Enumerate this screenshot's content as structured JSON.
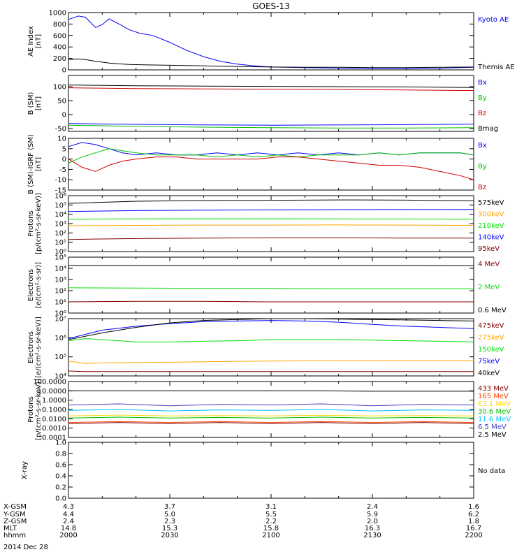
{
  "title": "GOES-13",
  "footer": {
    "rows": [
      {
        "label": "X-GSM",
        "values": [
          "4.3",
          "3.7",
          "3.1",
          "2.4",
          "1.6"
        ]
      },
      {
        "label": "Y-GSM",
        "values": [
          "4.4",
          "5.0",
          "5.5",
          "5.9",
          "6.2"
        ]
      },
      {
        "label": "Z-GSM",
        "values": [
          "2.4",
          "2.3",
          "2.2",
          "2.0",
          "1.8"
        ]
      },
      {
        "label": "MLT",
        "values": [
          "14.8",
          "15.3",
          "15.8",
          "16.3",
          "16.7"
        ]
      },
      {
        "label": "hhmm",
        "values": [
          "2000",
          "2030",
          "2100",
          "2130",
          "2200"
        ]
      }
    ],
    "date": "2014 Dec 28"
  },
  "chart_data": [
    {
      "id": "ae",
      "type": "line",
      "ylabel_lines": [
        "AE Index",
        "[nT]"
      ],
      "ylim": [
        0,
        1000
      ],
      "yscale": "linear",
      "yticks": [
        {
          "v": 0,
          "t": "0"
        },
        {
          "v": 200,
          "t": "200"
        },
        {
          "v": 400,
          "t": "400"
        },
        {
          "v": 600,
          "t": "600"
        },
        {
          "v": 800,
          "t": "800"
        },
        {
          "v": 1000,
          "t": "1000"
        }
      ],
      "x": [
        0,
        3,
        5,
        8,
        10,
        12,
        15,
        18,
        21,
        25,
        30,
        35,
        40,
        45,
        50,
        55,
        60,
        70,
        80,
        90,
        100,
        110,
        120
      ],
      "series": [
        {
          "name": "Kyoto AE",
          "color": "#0000ff",
          "values": [
            880,
            940,
            920,
            740,
            790,
            890,
            800,
            700,
            640,
            600,
            480,
            340,
            230,
            150,
            100,
            70,
            50,
            40,
            30,
            25,
            20,
            30,
            45
          ]
        },
        {
          "name": "Themis AE",
          "color": "#000000",
          "values": [
            180,
            190,
            180,
            150,
            135,
            120,
            105,
            95,
            90,
            85,
            80,
            75,
            70,
            65,
            60,
            55,
            50,
            45,
            45,
            40,
            40,
            45,
            50
          ]
        }
      ]
    },
    {
      "id": "bsm",
      "type": "line",
      "ylabel_lines": [
        "B (SM)",
        "[nT]"
      ],
      "ylim": [
        -60,
        140
      ],
      "yscale": "linear",
      "yticks": [
        {
          "v": -50,
          "t": "-50"
        },
        {
          "v": 0,
          "t": "0"
        },
        {
          "v": 50,
          "t": "50"
        },
        {
          "v": 100,
          "t": "100"
        }
      ],
      "x": [
        0,
        20,
        40,
        60,
        80,
        100,
        120
      ],
      "series": [
        {
          "name": "Bx",
          "color": "#0000ff",
          "values": [
            -32,
            -35,
            -37,
            -38,
            -37,
            -36,
            -34
          ]
        },
        {
          "name": "By",
          "color": "#00c000",
          "values": [
            -38,
            -42,
            -45,
            -47,
            -48,
            -48,
            -47
          ]
        },
        {
          "name": "Bz",
          "color": "#cc0000",
          "values": [
            96,
            93,
            92,
            91,
            90,
            88,
            86
          ]
        },
        {
          "name": "Bmag",
          "color": "#000000",
          "values": [
            106,
            103,
            102,
            101,
            100,
            99,
            97
          ]
        }
      ]
    },
    {
      "id": "bigrf",
      "type": "line",
      "ylabel_lines": [
        "B (SM)-IGRF (SM)",
        "[nT]"
      ],
      "ylim": [
        -15,
        10
      ],
      "yscale": "linear",
      "yticks": [
        {
          "v": -15,
          "t": "-15"
        },
        {
          "v": -10,
          "t": "-10"
        },
        {
          "v": -5,
          "t": "-5"
        },
        {
          "v": 0,
          "t": "0"
        },
        {
          "v": 5,
          "t": "5"
        },
        {
          "v": 10,
          "t": "10"
        }
      ],
      "x": [
        0,
        4,
        8,
        12,
        16,
        20,
        26,
        32,
        38,
        44,
        50,
        56,
        62,
        68,
        74,
        80,
        86,
        92,
        98,
        104,
        110,
        116,
        120
      ],
      "series": [
        {
          "name": "Bx",
          "color": "#0000ff",
          "values": [
            6,
            8,
            7,
            5,
            3,
            2,
            3,
            2,
            2,
            3,
            2,
            3,
            2,
            3,
            2,
            3,
            2,
            3,
            2,
            3,
            3,
            3,
            2
          ]
        },
        {
          "name": "By",
          "color": "#00c000",
          "values": [
            -2,
            1,
            3,
            5,
            4,
            3,
            2,
            2,
            2,
            1,
            2,
            1,
            2,
            1,
            2,
            2,
            2,
            3,
            2,
            3,
            3,
            3,
            2
          ]
        },
        {
          "name": "Bz",
          "color": "#cc0000",
          "values": [
            0,
            -4,
            -6,
            -3,
            -1,
            0,
            1,
            1,
            0,
            0,
            0,
            0,
            1,
            1,
            0,
            -1,
            -2,
            -3,
            -3,
            -4,
            -6,
            -8,
            -10
          ]
        }
      ]
    },
    {
      "id": "protons_low",
      "type": "line",
      "ylabel_lines": [
        "Protons",
        "[p/(cm²-s-sr-keV)]"
      ],
      "ylim": [
        1,
        1000000
      ],
      "yscale": "log",
      "yticks": [
        {
          "v": 1,
          "t": "10⁰"
        },
        {
          "v": 10,
          "t": "10¹"
        },
        {
          "v": 100,
          "t": "10²"
        },
        {
          "v": 1000,
          "t": "10³"
        },
        {
          "v": 10000,
          "t": "10⁴"
        },
        {
          "v": 100000,
          "t": "10⁵"
        },
        {
          "v": 1000000,
          "t": "10⁶"
        }
      ],
      "x": [
        0,
        20,
        40,
        60,
        80,
        100,
        120
      ],
      "series": [
        {
          "name": "575keV",
          "color": "#000000",
          "values": [
            150000,
            250000,
            300000,
            320000,
            350000,
            330000,
            280000
          ]
        },
        {
          "name": "300keV",
          "color": "#ffa500",
          "values": [
            600,
            650,
            700,
            700,
            720,
            700,
            650
          ]
        },
        {
          "name": "210keV",
          "color": "#00e000",
          "values": [
            3000,
            3200,
            3300,
            3300,
            3200,
            3100,
            3000
          ]
        },
        {
          "name": "140keV",
          "color": "#0000ff",
          "values": [
            20000,
            25000,
            28000,
            30000,
            31000,
            32000,
            33000
          ]
        },
        {
          "name": "95keV",
          "color": "#800000",
          "values": [
            20,
            25,
            28,
            30,
            30,
            28,
            28
          ]
        }
      ]
    },
    {
      "id": "electrons_mev",
      "type": "line",
      "ylabel_lines": [
        "Electrons",
        "[e/(cm²-s-sr)]"
      ],
      "ylim": [
        1,
        100000
      ],
      "yscale": "log",
      "yticks": [
        {
          "v": 1,
          "t": "10⁰"
        },
        {
          "v": 10,
          "t": "10¹"
        },
        {
          "v": 100,
          "t": "10²"
        },
        {
          "v": 1000,
          "t": "10³"
        },
        {
          "v": 10000,
          "t": "10⁴"
        },
        {
          "v": 100000,
          "t": "10⁵"
        }
      ],
      "x": [
        0,
        20,
        40,
        60,
        80,
        100,
        120
      ],
      "series": [
        {
          "name": "4 MeV",
          "color": "#800000",
          "values": [
            10,
            11,
            11,
            10,
            10,
            10,
            10
          ]
        },
        {
          "name": "2 MeV",
          "color": "#00e000",
          "values": [
            180,
            170,
            160,
            160,
            150,
            150,
            150
          ]
        },
        {
          "name": "0.6 MeV",
          "color": "#000000",
          "values": [
            18000,
            18000,
            18000,
            18000,
            18000,
            18000,
            17000
          ]
        }
      ]
    },
    {
      "id": "electrons_kev",
      "type": "line",
      "ylabel_lines": [
        "Electrons",
        "[e/(cm²-s-sr-keV)]"
      ],
      "ylim": [
        10000,
        10000000
      ],
      "yscale": "log",
      "yticks": [
        {
          "v": 10000,
          "t": "10⁴"
        },
        {
          "v": 100000,
          "t": "10⁵"
        },
        {
          "v": 1000000,
          "t": "10⁶"
        },
        {
          "v": 10000000,
          "t": "10⁷"
        }
      ],
      "x": [
        0,
        5,
        10,
        20,
        30,
        40,
        50,
        60,
        70,
        80,
        90,
        100,
        110,
        120
      ],
      "series": [
        {
          "name": "475keV",
          "color": "#800000",
          "values": [
            18000,
            17000,
            17000,
            17000,
            17000,
            17000,
            17000,
            17000,
            17000,
            17000,
            17000,
            17000,
            17000,
            17000
          ]
        },
        {
          "name": "275keV",
          "color": "#ffa500",
          "values": [
            60000,
            45000,
            48000,
            50000,
            52000,
            55000,
            58000,
            60000,
            62000,
            63000,
            65000,
            65000,
            65000,
            65000
          ]
        },
        {
          "name": "150keV",
          "color": "#00e000",
          "values": [
            700000,
            900000,
            800000,
            600000,
            600000,
            650000,
            700000,
            800000,
            800000,
            800000,
            750000,
            700000,
            650000,
            600000
          ]
        },
        {
          "name": "75keV",
          "color": "#0000ff",
          "values": [
            900000,
            1500000,
            2500000,
            4000000,
            5500000,
            7000000,
            7500000,
            8000000,
            7500000,
            6500000,
            5000000,
            4000000,
            3500000,
            3000000
          ]
        },
        {
          "name": "40keV",
          "color": "#000000",
          "values": [
            800000,
            1200000,
            1800000,
            3500000,
            6000000,
            8000000,
            9000000,
            10000000,
            10000000,
            9500000,
            9000000,
            8500000,
            8000000,
            7500000
          ]
        }
      ]
    },
    {
      "id": "protons_high",
      "type": "line",
      "ylabel_lines": [
        "Protons",
        "[p/(cm²-s-sr-keV)]"
      ],
      "ylim": [
        0.0001,
        100
      ],
      "yscale": "log",
      "yticks": [
        {
          "v": 0.0001,
          "t": "0.0001"
        },
        {
          "v": 0.001,
          "t": "0.0010"
        },
        {
          "v": 0.01,
          "t": "0.0100"
        },
        {
          "v": 0.1,
          "t": "0.1000"
        },
        {
          "v": 1,
          "t": "1.0000"
        },
        {
          "v": 10,
          "t": "10.0000"
        },
        {
          "v": 100,
          "t": "100.0000"
        }
      ],
      "x": [
        0,
        15,
        30,
        45,
        60,
        75,
        90,
        105,
        120
      ],
      "series": [
        {
          "name": "433 MeV",
          "color": "#800000",
          "values": [
            0.003,
            0.004,
            0.003,
            0.004,
            0.003,
            0.004,
            0.003,
            0.004,
            0.003
          ]
        },
        {
          "name": "165 MeV",
          "color": "#ff4500",
          "values": [
            0.004,
            0.005,
            0.004,
            0.005,
            0.004,
            0.005,
            0.004,
            0.005,
            0.004
          ]
        },
        {
          "name": "63.1 MeV",
          "color": "#ffd700",
          "values": [
            0.02,
            0.025,
            0.02,
            0.022,
            0.02,
            0.024,
            0.02,
            0.022,
            0.02
          ]
        },
        {
          "name": "30.6 MeV",
          "color": "#00c000",
          "values": [
            0.012,
            0.015,
            0.012,
            0.014,
            0.012,
            0.015,
            0.012,
            0.014,
            0.012
          ]
        },
        {
          "name": "11.6 MeV",
          "color": "#00bfff",
          "values": [
            0.08,
            0.1,
            0.07,
            0.09,
            0.08,
            0.1,
            0.07,
            0.09,
            0.08
          ]
        },
        {
          "name": "6.5 MeV",
          "color": "#4040c0",
          "values": [
            0.3,
            0.4,
            0.25,
            0.35,
            0.3,
            0.4,
            0.25,
            0.35,
            0.3
          ]
        },
        {
          "name": "2.5 MeV",
          "color": "#000000",
          "values": [
            10,
            10,
            10,
            10,
            10,
            10,
            9,
            9,
            9
          ]
        }
      ]
    },
    {
      "id": "xray",
      "type": "line",
      "ylabel_lines": [
        "X-ray"
      ],
      "ylim": [
        0,
        1
      ],
      "yscale": "linear",
      "yticks": [
        {
          "v": 0,
          "t": "0.0"
        },
        {
          "v": 0.2,
          "t": "0.2"
        },
        {
          "v": 0.4,
          "t": "0.4"
        },
        {
          "v": 0.6,
          "t": "0.6"
        },
        {
          "v": 0.8,
          "t": "0.8"
        },
        {
          "v": 1,
          "t": "1.0"
        }
      ],
      "x": [],
      "series": [],
      "note": "No data"
    }
  ]
}
